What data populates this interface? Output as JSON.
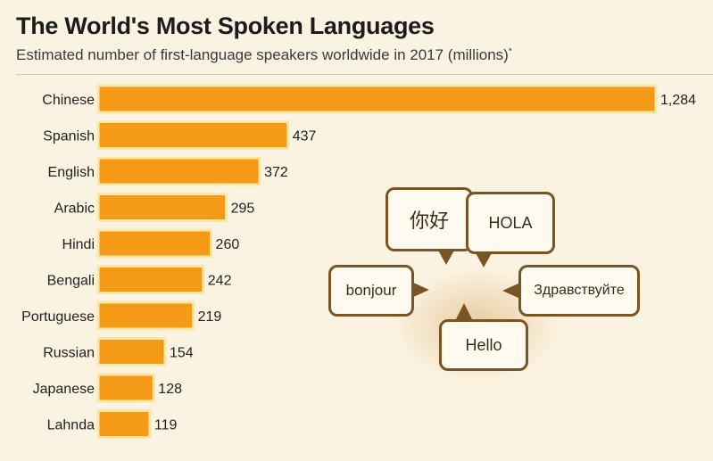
{
  "header": {
    "title": "The World's Most Spoken Languages",
    "subtitle": "Estimated number of first-language speakers worldwide in 2017 (millions)",
    "subtitle_mark": "*"
  },
  "chart_data": {
    "type": "bar",
    "orientation": "horizontal",
    "categories": [
      "Chinese",
      "Spanish",
      "English",
      "Arabic",
      "Hindi",
      "Bengali",
      "Portuguese",
      "Russian",
      "Japanese",
      "Lahnda"
    ],
    "values": [
      1284,
      437,
      372,
      295,
      260,
      242,
      219,
      154,
      128,
      119
    ],
    "value_labels": [
      "1,284",
      "437",
      "372",
      "295",
      "260",
      "242",
      "219",
      "154",
      "128",
      "119"
    ],
    "xlim": [
      0,
      1284
    ],
    "grid": false,
    "bar_color": "#f59a17",
    "bar_outline_color": "#fde7a6"
  },
  "illustration": {
    "bubbles": [
      {
        "key": "chinese",
        "text": "你好"
      },
      {
        "key": "spanish",
        "text": "HOLA"
      },
      {
        "key": "french",
        "text": "bonjour"
      },
      {
        "key": "russian",
        "text": "Здравствуйте"
      },
      {
        "key": "english",
        "text": "Hello"
      }
    ],
    "border_color": "#7a5523",
    "fill_color": "#fffaf0"
  },
  "colors": {
    "background": "#fbf3e1",
    "text": "#1c1c1c"
  }
}
